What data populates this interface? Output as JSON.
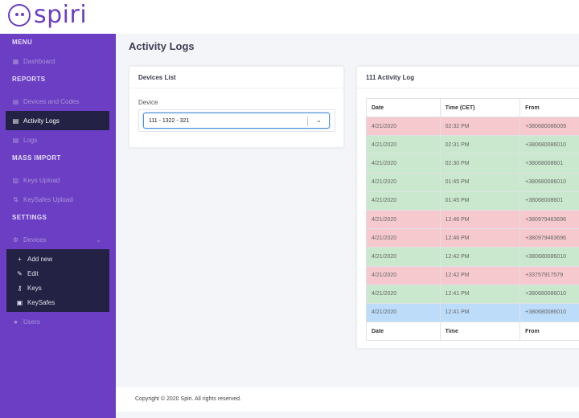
{
  "brand": {
    "name": "spiri"
  },
  "sidebar": {
    "sections": {
      "menu": "MENU",
      "reports": "REPORTS",
      "mass_import": "MASS IMPORT",
      "settings": "SETTINGS"
    },
    "items": {
      "dashboard": "Dashboard",
      "devices_codes": "Devices and Codes",
      "activity_logs": "Activity Logs",
      "logs": "Logs",
      "keys_upload": "Keys Upload",
      "keysafes_upload": "KeySafes Upload",
      "devices": "Devices",
      "add_new": "Add new",
      "edit": "Edit",
      "keys": "Keys",
      "keysafes": "KeySafes",
      "users": "Users"
    }
  },
  "page": {
    "title": "Activity Logs"
  },
  "devices_card": {
    "title": "Devices List",
    "field_label": "Device",
    "selected": "111 - 1322 - 321"
  },
  "log_card": {
    "title": "111 Activity Log",
    "header": [
      "Date",
      "Time (CET)",
      "From"
    ],
    "footer_header": [
      "Date",
      "Time",
      "From"
    ],
    "rows": [
      {
        "date": "4/21/2020",
        "time": "02:32 PM",
        "from": "+380680086009",
        "status": "red"
      },
      {
        "date": "4/21/2020",
        "time": "02:31 PM",
        "from": "+380680086010",
        "status": "green"
      },
      {
        "date": "4/21/2020",
        "time": "02:30 PM",
        "from": "+38068008601",
        "status": "green"
      },
      {
        "date": "4/21/2020",
        "time": "01:45 PM",
        "from": "+380680086010",
        "status": "green"
      },
      {
        "date": "4/21/2020",
        "time": "01:45 PM",
        "from": "+38068008601",
        "status": "green"
      },
      {
        "date": "4/21/2020",
        "time": "12:46 PM",
        "from": "+380979463696",
        "status": "red"
      },
      {
        "date": "4/21/2020",
        "time": "12:46 PM",
        "from": "+380979463696",
        "status": "red"
      },
      {
        "date": "4/21/2020",
        "time": "12:42 PM",
        "from": "+380680086010",
        "status": "green"
      },
      {
        "date": "4/21/2020",
        "time": "12:42 PM",
        "from": "+33757917579",
        "status": "red"
      },
      {
        "date": "4/21/2020",
        "time": "12:41 PM",
        "from": "+380680086010",
        "status": "green"
      },
      {
        "date": "4/21/2020",
        "time": "12:41 PM",
        "from": "+380680086010",
        "status": "blue"
      }
    ]
  },
  "colors": {
    "red": "#f6c9ce",
    "green": "#c9e8cd",
    "blue": "#bcdcfa",
    "brand": "#6b3ec4"
  },
  "footer": {
    "text": "Copyright © 2020 Spiri. All rights reserved."
  }
}
